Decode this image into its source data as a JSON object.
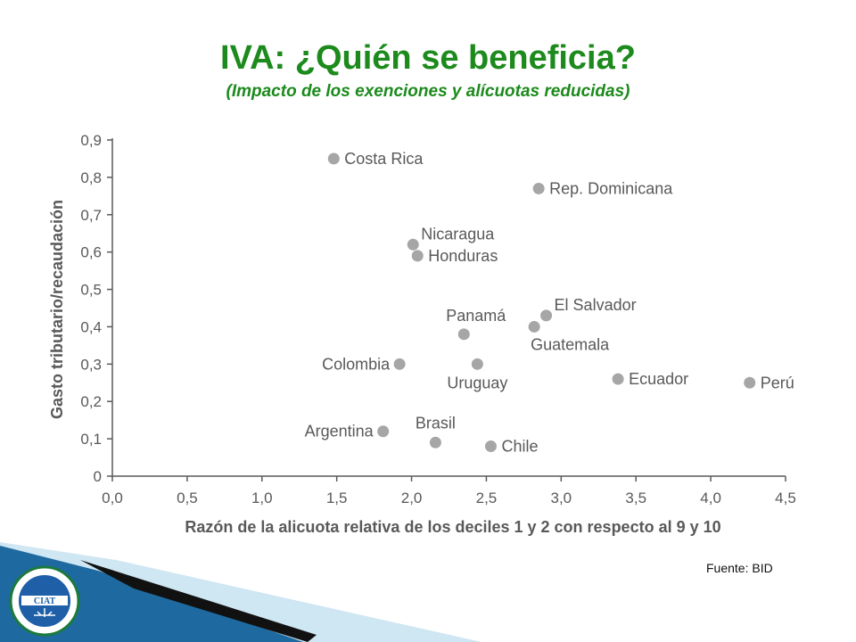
{
  "page": {
    "title": "IVA: ¿Quién se beneficia?",
    "subtitle": "(Impacto de los exenciones y alícuotas reducidas)",
    "source": "Fuente: BID",
    "seal_text": "CIAT"
  },
  "colors": {
    "title": "#1c8a1c",
    "point": "#a6a6a6",
    "axis": "#5a5a5a",
    "label": "#595959",
    "footer_blue": "#1e6aa0",
    "footer_light": "#cfe6f3"
  },
  "chart_data": {
    "type": "scatter",
    "xlabel": "Razón de la alicuota relativa de los deciles  1 y 2 con respecto al 9 y 10",
    "ylabel": "Gasto tributario/recaudación",
    "xlim": [
      0.0,
      4.5
    ],
    "ylim": [
      0.0,
      0.9
    ],
    "x_ticks": [
      "0,0",
      "0,5",
      "1,0",
      "1,5",
      "2,0",
      "2,5",
      "3,0",
      "3,5",
      "4,0",
      "4,5"
    ],
    "y_ticks": [
      "0",
      "0,1",
      "0,2",
      "0,3",
      "0,4",
      "0,5",
      "0,6",
      "0,7",
      "0,8",
      "0,9"
    ],
    "grid": false,
    "points": [
      {
        "label": "Costa Rica",
        "x": 1.48,
        "y": 0.85,
        "label_pos": "right"
      },
      {
        "label": "Rep. Dominicana",
        "x": 2.85,
        "y": 0.77,
        "label_pos": "right"
      },
      {
        "label": "Nicaragua",
        "x": 2.01,
        "y": 0.62,
        "label_pos": "above-right"
      },
      {
        "label": "Honduras",
        "x": 2.04,
        "y": 0.59,
        "label_pos": "right"
      },
      {
        "label": "El Salvador",
        "x": 2.9,
        "y": 0.43,
        "label_pos": "above-right"
      },
      {
        "label": "Guatemala",
        "x": 2.82,
        "y": 0.4,
        "label_pos": "below-right"
      },
      {
        "label": "Panamá",
        "x": 2.35,
        "y": 0.38,
        "label_pos": "above-left"
      },
      {
        "label": "Colombia",
        "x": 1.92,
        "y": 0.3,
        "label_pos": "left"
      },
      {
        "label": "Uruguay",
        "x": 2.44,
        "y": 0.3,
        "label_pos": "below"
      },
      {
        "label": "Ecuador",
        "x": 3.38,
        "y": 0.26,
        "label_pos": "right"
      },
      {
        "label": "Perú",
        "x": 4.26,
        "y": 0.25,
        "label_pos": "right"
      },
      {
        "label": "Argentina",
        "x": 1.81,
        "y": 0.12,
        "label_pos": "left"
      },
      {
        "label": "Brasil",
        "x": 2.16,
        "y": 0.09,
        "label_pos": "above"
      },
      {
        "label": "Chile",
        "x": 2.53,
        "y": 0.08,
        "label_pos": "right"
      }
    ]
  }
}
